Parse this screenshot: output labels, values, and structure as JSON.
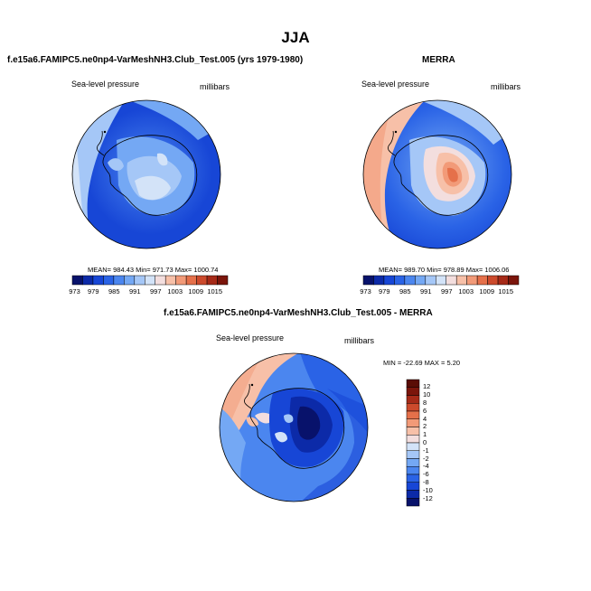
{
  "main_title": "JJA",
  "panels": [
    {
      "title": "f.e15a6.FAMIPC5.ne0np4-VarMeshNH3.Club_Test.005 (yrs 1979-1980)",
      "left_label": "Sea-level pressure",
      "right_label": "millibars",
      "stats": "MEAN= 984.43  Min= 971.73  Max= 1000.74",
      "colorbar_ticks": [
        "973",
        "979",
        "985",
        "991",
        "997",
        "1003",
        "1009",
        "1015"
      ]
    },
    {
      "title": "MERRA",
      "left_label": "Sea-level pressure",
      "right_label": "millibars",
      "stats": "MEAN= 989.70  Min= 978.89  Max= 1006.06",
      "colorbar_ticks": [
        "973",
        "979",
        "985",
        "991",
        "997",
        "1003",
        "1009",
        "1015"
      ]
    },
    {
      "title": "f.e15a6.FAMIPC5.ne0np4-VarMeshNH3.Club_Test.005 - MERRA",
      "left_label": "Sea-level pressure",
      "right_label": "millibars",
      "stats": "MIN = -22.69  MAX =   5.20",
      "colorbar_ticks": [
        "12",
        "10",
        "8",
        "6",
        "4",
        "2",
        "1",
        "0",
        "-1",
        "-2",
        "-4",
        "-6",
        "-8",
        "-10",
        "-12"
      ]
    }
  ],
  "colors": {
    "seq_palette": [
      "#08126b",
      "#0c2aa8",
      "#1746d6",
      "#2a63e6",
      "#4b86ef",
      "#74a8f4",
      "#a5c7f7",
      "#d3e3f8",
      "#f3dede",
      "#f7c0a8",
      "#f29a78",
      "#e5704a",
      "#cc4a2c",
      "#a62a18",
      "#7b150b"
    ],
    "diff_palette": [
      "#08126b",
      "#0c2aa8",
      "#1746d6",
      "#2a63e6",
      "#4b86ef",
      "#74a8f4",
      "#a5c7f7",
      "#d3e3f8",
      "#f3dede",
      "#f7c0a8",
      "#f29a78",
      "#e5704a",
      "#cc4a2c",
      "#a62a18",
      "#7b150b",
      "#5a0d06"
    ]
  }
}
